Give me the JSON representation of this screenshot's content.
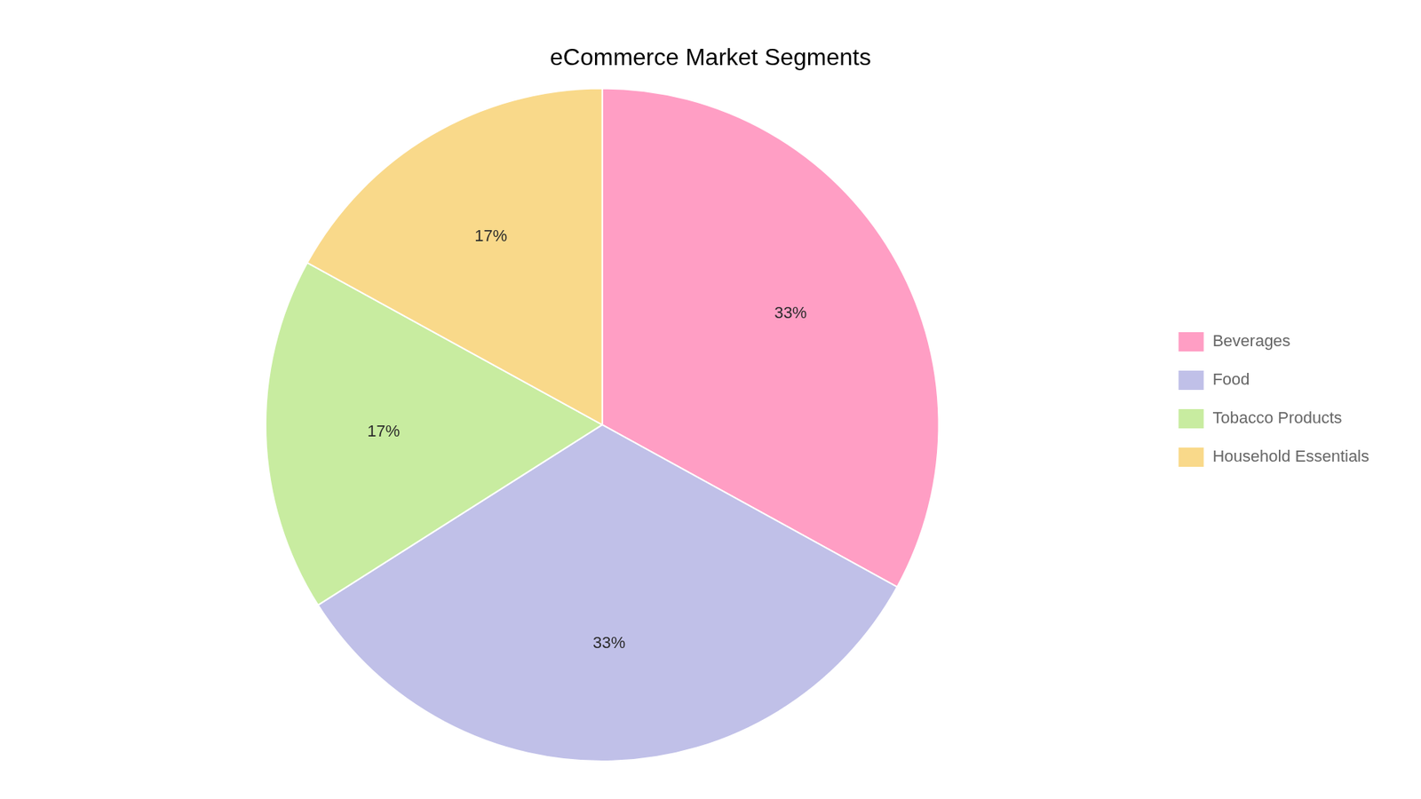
{
  "chart_data": {
    "type": "pie",
    "title": "eCommerce Market Segments",
    "categories": [
      "Beverages",
      "Food",
      "Tobacco Products",
      "Household Essentials"
    ],
    "values": [
      33,
      33,
      17,
      17
    ],
    "value_labels": [
      "33%",
      "33%",
      "17%",
      "17%"
    ],
    "colors": [
      "#FF9EC4",
      "#C0C0E8",
      "#C8ECA0",
      "#F9D98A"
    ],
    "data_labels": true,
    "legend": "right"
  }
}
